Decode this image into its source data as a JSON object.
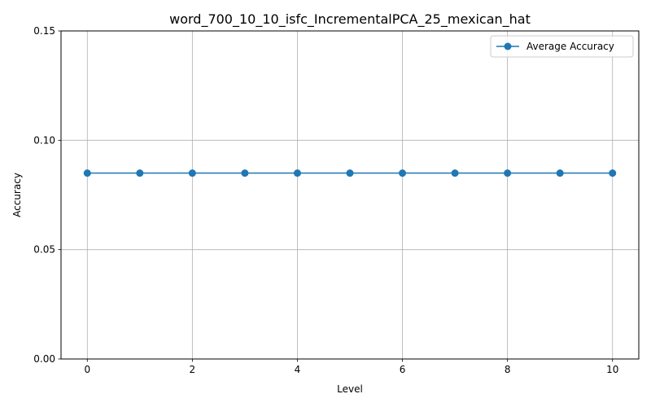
{
  "chart_data": {
    "type": "line",
    "title": "word_700_10_10_isfc_IncrementalPCA_25_mexican_hat",
    "xlabel": "Level",
    "ylabel": "Accuracy",
    "xlim": [
      -0.5,
      10.5
    ],
    "ylim": [
      0,
      0.15
    ],
    "xticks": [
      0,
      2,
      4,
      6,
      8,
      10
    ],
    "xtick_labels": [
      "0",
      "2",
      "4",
      "6",
      "8",
      "10"
    ],
    "yticks": [
      0,
      0.05,
      0.1,
      0.15
    ],
    "ytick_labels": [
      "0.00",
      "0.05",
      "0.10",
      "0.15"
    ],
    "grid": true,
    "legend_position": "top-right",
    "series": [
      {
        "name": "Average Accuracy",
        "color": "#1f77b4",
        "marker": "circle",
        "x": [
          0,
          1,
          2,
          3,
          4,
          5,
          6,
          7,
          8,
          9,
          10
        ],
        "y": [
          0.085,
          0.085,
          0.085,
          0.085,
          0.085,
          0.085,
          0.085,
          0.085,
          0.085,
          0.085,
          0.085
        ]
      }
    ]
  }
}
